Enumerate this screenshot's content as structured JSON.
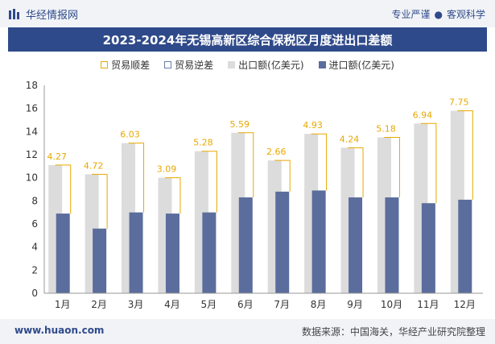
{
  "header": {
    "site_name": "华经情报网",
    "tagline_left": "专业严谨",
    "tagline_sep": "●",
    "tagline_right": "客观科学"
  },
  "footer": {
    "url": "www.huaon.com",
    "source": "数据来源：中国海关，华经产业研究院整理"
  },
  "colors": {
    "brand": "#2f4a8a",
    "export_bar": "#dcdcdc",
    "import_bar": "#5b6d9c",
    "surplus_line": "#e8a800"
  },
  "chart_data": {
    "type": "bar",
    "title": "2023-2024年无锡高新区综合保税区月度进出口差额",
    "legend": [
      "贸易顺差",
      "贸易逆差",
      "出口额(亿美元)",
      "进口额(亿美元)"
    ],
    "legend_position": "top",
    "categories": [
      "1月",
      "2月",
      "3月",
      "4月",
      "5月",
      "6月",
      "7月",
      "8月",
      "9月",
      "10月",
      "11月",
      "12月"
    ],
    "series": [
      {
        "name": "出口额(亿美元)",
        "values": [
          11.1,
          10.3,
          13.0,
          10.0,
          12.3,
          13.9,
          11.5,
          13.8,
          12.6,
          13.5,
          14.7,
          15.8
        ]
      },
      {
        "name": "进口额(亿美元)",
        "values": [
          6.9,
          5.6,
          7.0,
          6.9,
          7.0,
          8.3,
          8.8,
          8.9,
          8.3,
          8.3,
          7.8,
          8.1
        ]
      },
      {
        "name": "贸易顺差",
        "values": [
          4.27,
          4.72,
          6.03,
          3.09,
          5.28,
          5.59,
          2.66,
          4.93,
          4.24,
          5.18,
          6.94,
          7.75
        ]
      }
    ],
    "data_labels": [
      "4.27",
      "4.72",
      "6.03",
      "3.09",
      "5.28",
      "5.59",
      "2.66",
      "4.93",
      "4.24",
      "5.18",
      "6.94",
      "7.75"
    ],
    "y_ticks": [
      "0",
      "2",
      "4",
      "6",
      "8",
      "10",
      "12",
      "14",
      "16",
      "18"
    ],
    "ylim": [
      0,
      18
    ],
    "grid": false
  }
}
